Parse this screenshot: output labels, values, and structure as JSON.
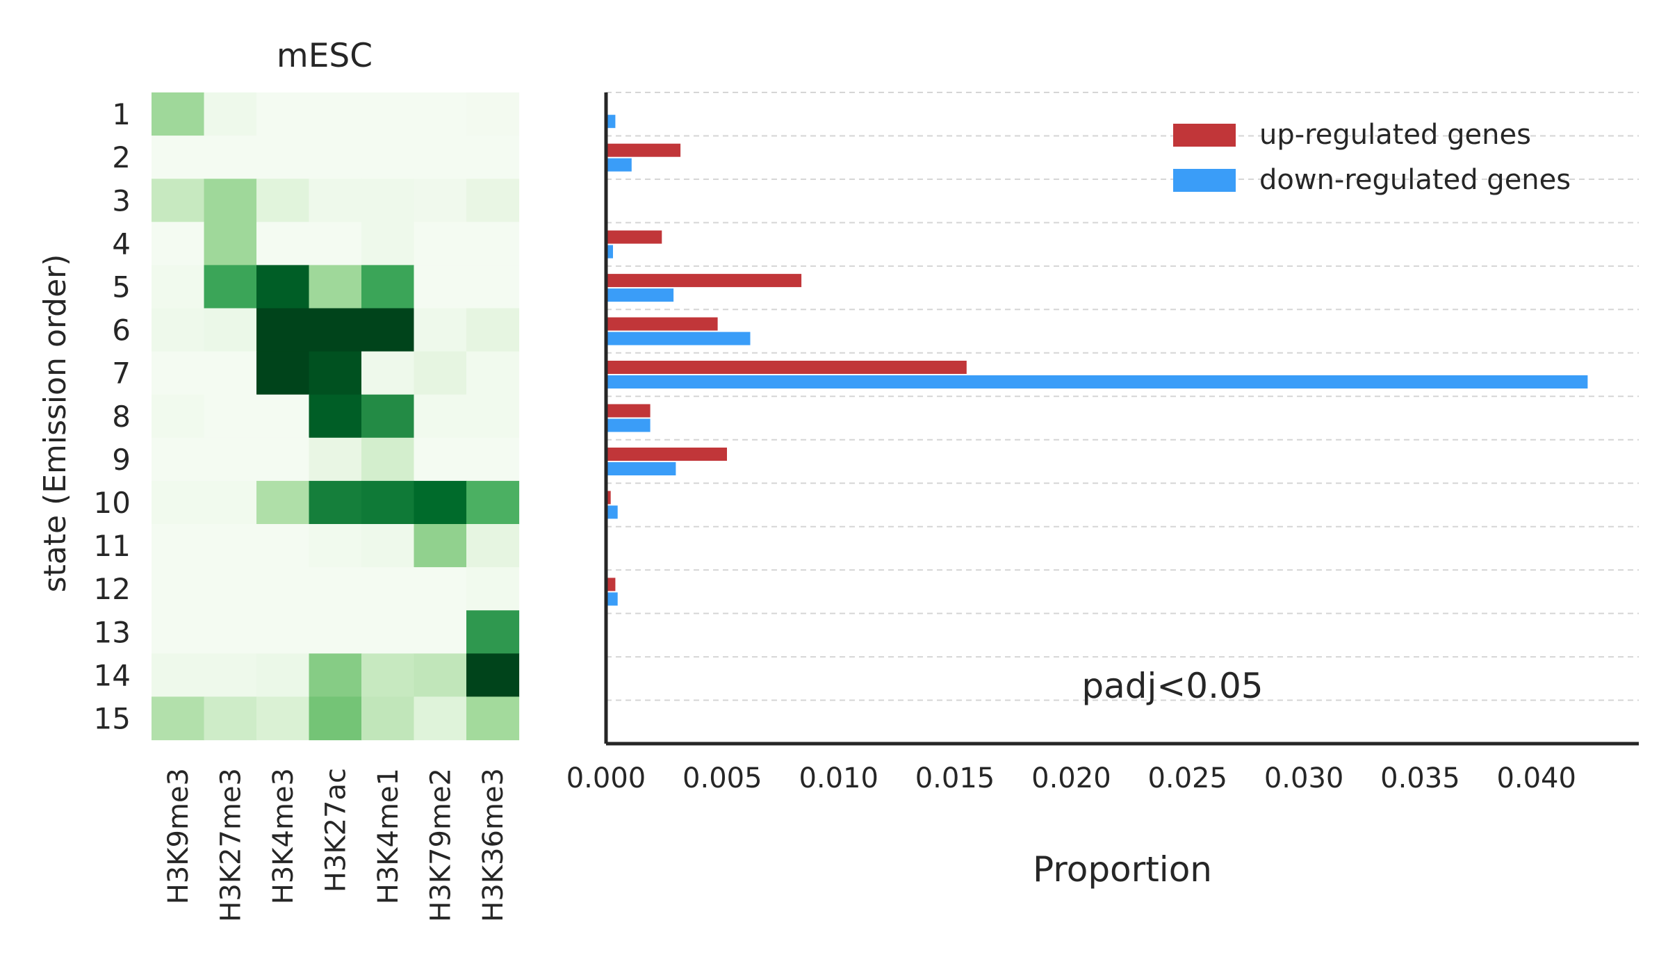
{
  "heatmap": {
    "title": "mESC",
    "ylabel": "state (Emission order)",
    "states": [
      "1",
      "2",
      "3",
      "4",
      "5",
      "6",
      "7",
      "8",
      "9",
      "10",
      "11",
      "12",
      "13",
      "14",
      "15"
    ],
    "marks": [
      "H3K9me3",
      "H3K27me3",
      "H3K4me3",
      "H3K27ac",
      "H3K4me1",
      "H3K79me2",
      "H3K36me3"
    ],
    "colormap": [
      "#f7fcf5",
      "#e5f5e0",
      "#c7e9c0",
      "#a1d99b",
      "#74c476",
      "#41ab5d",
      "#238b45",
      "#006d2c",
      "#00441b"
    ]
  },
  "bars": {
    "annotation": "padj<0.05",
    "colors": {
      "up": "#c13639",
      "down": "#3a9df8"
    }
  },
  "chart_data": [
    {
      "type": "heatmap",
      "title": "mESC",
      "xlabel": "",
      "ylabel": "state (Emission order)",
      "x": [
        "H3K9me3",
        "H3K27me3",
        "H3K4me3",
        "H3K27ac",
        "H3K4me1",
        "H3K79me2",
        "H3K36me3"
      ],
      "y": [
        "1",
        "2",
        "3",
        "4",
        "5",
        "6",
        "7",
        "8",
        "9",
        "10",
        "11",
        "12",
        "13",
        "14",
        "15"
      ],
      "values": [
        [
          0.38,
          0.06,
          0.02,
          0.02,
          0.02,
          0.02,
          0.03
        ],
        [
          0.02,
          0.02,
          0.02,
          0.02,
          0.02,
          0.02,
          0.02
        ],
        [
          0.25,
          0.38,
          0.14,
          0.06,
          0.06,
          0.05,
          0.1
        ],
        [
          0.02,
          0.38,
          0.02,
          0.02,
          0.06,
          0.02,
          0.02
        ],
        [
          0.04,
          0.65,
          0.92,
          0.38,
          0.65,
          0.02,
          0.02
        ],
        [
          0.06,
          0.08,
          1.0,
          1.0,
          1.0,
          0.06,
          0.12
        ],
        [
          0.02,
          0.02,
          1.0,
          0.96,
          0.06,
          0.12,
          0.04
        ],
        [
          0.04,
          0.02,
          0.02,
          0.92,
          0.75,
          0.04,
          0.04
        ],
        [
          0.02,
          0.02,
          0.02,
          0.1,
          0.2,
          0.02,
          0.02
        ],
        [
          0.04,
          0.04,
          0.33,
          0.8,
          0.82,
          0.88,
          0.6
        ],
        [
          0.02,
          0.02,
          0.02,
          0.04,
          0.06,
          0.42,
          0.12
        ],
        [
          0.02,
          0.02,
          0.02,
          0.02,
          0.02,
          0.02,
          0.04
        ],
        [
          0.02,
          0.02,
          0.02,
          0.02,
          0.02,
          0.02,
          0.7
        ],
        [
          0.06,
          0.06,
          0.08,
          0.45,
          0.25,
          0.27,
          1.0
        ],
        [
          0.32,
          0.22,
          0.17,
          0.5,
          0.27,
          0.15,
          0.37
        ]
      ]
    },
    {
      "type": "bar",
      "orientation": "horizontal",
      "categories": [
        "1",
        "2",
        "3",
        "4",
        "5",
        "6",
        "7",
        "8",
        "9",
        "10",
        "11",
        "12",
        "13",
        "14",
        "15"
      ],
      "series": [
        {
          "name": "up-regulated genes",
          "values": [
            0,
            0.0032,
            0,
            0.0024,
            0.0084,
            0.0048,
            0.0155,
            0.0019,
            0.0052,
            0.0002,
            0,
            0.0004,
            0,
            0,
            0
          ]
        },
        {
          "name": "down-regulated genes",
          "values": [
            0.0004,
            0.0011,
            0,
            0.0003,
            0.0029,
            0.0062,
            0.0422,
            0.0019,
            0.003,
            0.0005,
            0,
            0.0005,
            0,
            0,
            0
          ]
        }
      ],
      "xlabel": "Proportion",
      "ylabel": "",
      "xlim": [
        0,
        0.0444
      ],
      "xticks": [
        "0.000",
        "0.005",
        "0.010",
        "0.015",
        "0.020",
        "0.025",
        "0.030",
        "0.035",
        "0.040"
      ],
      "grid": "horizontal dashed",
      "legend": "top-right",
      "annotation": "padj<0.05"
    }
  ]
}
